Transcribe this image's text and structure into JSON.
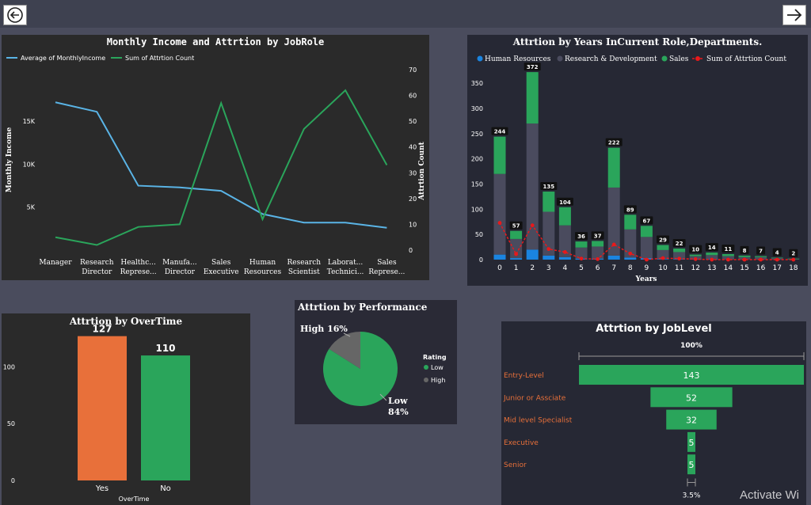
{
  "nav": {
    "back_icon": "back-arrow-icon",
    "forward_icon": "forward-arrow-icon"
  },
  "watermark": "Activate Wi",
  "chart_data": [
    {
      "type": "line",
      "title": "Monthly Income and Attrtion by JobRole",
      "categories": [
        "Manager",
        "Research Director",
        "Healthc... Represe...",
        "Manufa... Director",
        "Sales Executive",
        "Human Resources",
        "Research Scientist",
        "Laborat... Technici...",
        "Sales Represe..."
      ],
      "series": [
        {
          "name": "Average of MonthlyIncome",
          "axis": "left",
          "color": "#5ab4e6",
          "values": [
            17200,
            16100,
            7500,
            7300,
            6900,
            4200,
            3200,
            3200,
            2600
          ]
        },
        {
          "name": "Sum of Attrtion Count",
          "axis": "right",
          "color": "#2aa55b",
          "values": [
            5,
            2,
            9,
            10,
            57,
            12,
            47,
            62,
            33
          ]
        }
      ],
      "ylabel": "Monthly Income",
      "ylabel_right": "Attrtion Count",
      "yticks_left": [
        "5K",
        "10K",
        "15K"
      ],
      "yticks_right": [
        "0",
        "10",
        "20",
        "30",
        "40",
        "50",
        "60",
        "70"
      ],
      "ylim_left": [
        0,
        21000
      ],
      "ylim_right": [
        0,
        70
      ]
    },
    {
      "type": "bar",
      "title": "Attrtion by Years InCurrent Role,Departments.",
      "xlabel": "Years",
      "categories": [
        "0",
        "1",
        "2",
        "3",
        "4",
        "5",
        "6",
        "7",
        "8",
        "9",
        "10",
        "11",
        "12",
        "13",
        "14",
        "15",
        "16",
        "17",
        "18"
      ],
      "totals": [
        244,
        57,
        372,
        135,
        104,
        36,
        37,
        222,
        89,
        67,
        29,
        22,
        10,
        14,
        11,
        8,
        7,
        4,
        2
      ],
      "series": [
        {
          "name": "Human Resources",
          "color": "#1a84e0",
          "values": [
            10,
            3,
            20,
            8,
            5,
            2,
            2,
            8,
            4,
            3,
            1,
            1,
            1,
            1,
            0,
            0,
            0,
            0,
            0
          ]
        },
        {
          "name": "Research & Development",
          "color": "#4a4b5e",
          "values": [
            160,
            38,
            250,
            87,
            63,
            22,
            24,
            135,
            56,
            42,
            18,
            14,
            6,
            8,
            7,
            5,
            5,
            3,
            1
          ]
        },
        {
          "name": "Sales",
          "color": "#2aa55b",
          "values": [
            74,
            16,
            102,
            40,
            36,
            12,
            11,
            79,
            29,
            22,
            10,
            7,
            3,
            5,
            4,
            3,
            2,
            1,
            1
          ]
        },
        {
          "name": "Sum of Attrtion Count",
          "color": "#e8191b",
          "type": "line",
          "values": [
            73,
            11,
            68,
            21,
            15,
            2,
            1,
            30,
            12,
            0,
            3,
            2,
            1,
            0,
            0,
            0,
            0,
            0,
            0
          ]
        }
      ],
      "yticks": [
        "0",
        "50",
        "100",
        "150",
        "200",
        "250",
        "300",
        "350"
      ],
      "ylim": [
        0,
        380
      ],
      "legend_position": "top"
    },
    {
      "type": "bar",
      "title": "Attrtion by OverTime",
      "xlabel": "OverTime",
      "categories": [
        "Yes",
        "No"
      ],
      "values": [
        127,
        110
      ],
      "colors": [
        "#e8703a",
        "#2aa55b"
      ],
      "yticks": [
        "0",
        "50",
        "100"
      ],
      "ylim": [
        0,
        140
      ]
    },
    {
      "type": "pie",
      "title": "Attrtion by Performance",
      "legend_title": "Rating",
      "labels": [
        "Low",
        "High"
      ],
      "values": [
        84,
        16
      ],
      "value_labels": [
        "84%",
        "16%"
      ],
      "colors": [
        "#2aa55b",
        "#666666"
      ]
    },
    {
      "type": "bar",
      "title": "Attrtion by JobLevel",
      "orientation": "funnel",
      "categories": [
        "Entry-Level",
        "Junior or Assciate",
        "Mid level Specialist",
        "Executive",
        "Senior"
      ],
      "values": [
        143,
        52,
        32,
        5,
        5
      ],
      "top_label": "100%",
      "bottom_label": "3.5%",
      "bar_color": "#2aa55b",
      "label_color": "#e8703a"
    }
  ]
}
